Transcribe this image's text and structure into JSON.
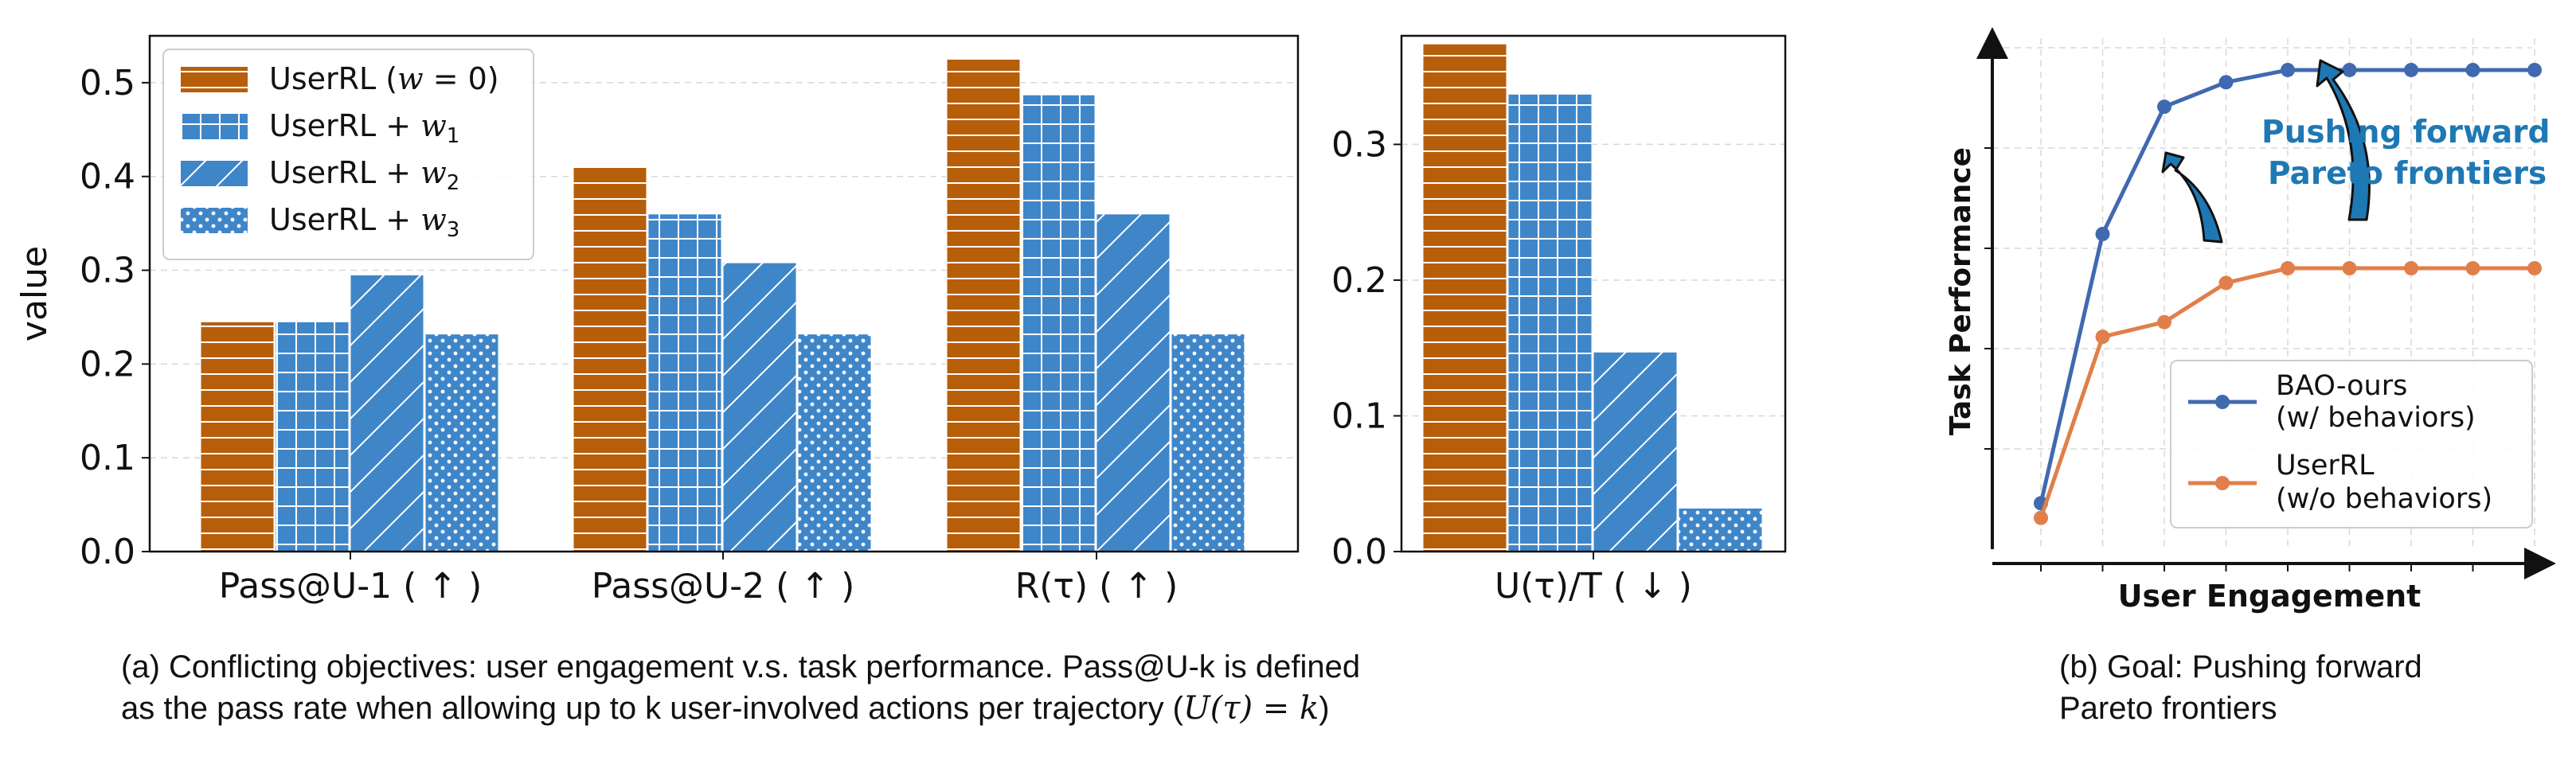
{
  "chart_data": [
    {
      "type": "bar",
      "panel": "a-left",
      "ylabel": "value",
      "ylim": [
        0,
        0.55
      ],
      "yticks": [
        "0.0",
        "0.1",
        "0.2",
        "0.3",
        "0.4",
        "0.5"
      ],
      "grid": true,
      "legend_position": "top-left",
      "categories": [
        "Pass@U-1 ( ↑ )",
        "Pass@U-2 ( ↑ )",
        "R(τ) ( ↑ )"
      ],
      "series": [
        {
          "name": "UserRL (w = 0)",
          "values": [
            0.245,
            0.41,
            0.525
          ]
        },
        {
          "name": "UserRL + w1",
          "values": [
            0.245,
            0.36,
            0.487
          ]
        },
        {
          "name": "UserRL + w2",
          "values": [
            0.295,
            0.308,
            0.36
          ]
        },
        {
          "name": "UserRL + w3",
          "values": [
            0.232,
            0.232,
            0.232
          ]
        }
      ]
    },
    {
      "type": "bar",
      "panel": "a-right",
      "ylim": [
        0,
        0.38
      ],
      "yticks": [
        "0.0",
        "0.1",
        "0.2",
        "0.3"
      ],
      "grid": true,
      "categories": [
        "U(τ)/T ( ↓ )"
      ],
      "series": [
        {
          "name": "UserRL (w = 0)",
          "values": [
            0.374
          ]
        },
        {
          "name": "UserRL + w1",
          "values": [
            0.337
          ]
        },
        {
          "name": "UserRL + w2",
          "values": [
            0.147
          ]
        },
        {
          "name": "UserRL + w3",
          "values": [
            0.032
          ]
        }
      ]
    },
    {
      "type": "line",
      "panel": "b",
      "xlabel": "User Engagement",
      "ylabel": "Task Performance",
      "x": [
        0,
        1,
        2,
        3,
        4,
        5,
        6,
        7,
        8
      ],
      "ylim": [
        0,
        1
      ],
      "series": [
        {
          "name": "BAO-ours (w/ behaviors)",
          "values": [
            0.05,
            0.6,
            0.86,
            0.91,
            0.935,
            0.935,
            0.935,
            0.935,
            0.935
          ]
        },
        {
          "name": "UserRL (w/o behaviors)",
          "values": [
            0.02,
            0.39,
            0.42,
            0.5,
            0.53,
            0.53,
            0.53,
            0.53,
            0.53
          ]
        }
      ],
      "annotation": "Pushing forward Pareto frontiers"
    }
  ],
  "colors": {
    "userrl_orange": "#b75e0b",
    "blue_bar": "#3f86c9",
    "bao_line": "#4169b0",
    "userrl_line": "#e07f4a",
    "annotation_blue": "#1e78b4"
  },
  "legend_a": {
    "l0": {
      "base": "UserRL (",
      "sym": "w",
      "sub": "",
      "tail": " = 0)"
    },
    "l1": {
      "base": "UserRL + ",
      "sym": "w",
      "sub": "1",
      "tail": ""
    },
    "l2": {
      "base": "UserRL + ",
      "sym": "w",
      "sub": "2",
      "tail": ""
    },
    "l3": {
      "base": "UserRL + ",
      "sym": "w",
      "sub": "3",
      "tail": ""
    }
  },
  "legend_b": {
    "bao_1": "BAO-ours",
    "bao_2": "(w/ behaviors)",
    "userrl_1": "UserRL",
    "userrl_2": "(w/o behaviors)"
  },
  "annotation_b": {
    "line1": "Pushing forward",
    "line2": "Pareto frontiers"
  },
  "captions": {
    "a_line1": "(a) Conflicting objectives: user engagement v.s. task performance. Pass@U-k is defined",
    "a_line2": "as the pass rate when allowing up to k user-involved actions per trajectory (",
    "a_math": "U(τ) = k",
    "a_close": ")",
    "b_line1": "(b) Goal: Pushing forward",
    "b_line2": "Pareto frontiers"
  }
}
